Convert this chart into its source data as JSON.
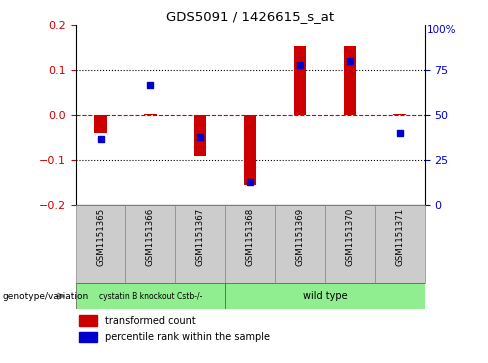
{
  "title": "GDS5091 / 1426615_s_at",
  "samples": [
    "GSM1151365",
    "GSM1151366",
    "GSM1151367",
    "GSM1151368",
    "GSM1151369",
    "GSM1151370",
    "GSM1151371"
  ],
  "red_bars": [
    -0.04,
    0.003,
    -0.09,
    -0.155,
    0.155,
    0.155,
    0.003
  ],
  "blue_dots_pct": [
    37,
    67,
    38,
    13,
    78,
    80,
    40
  ],
  "ylim_left": [
    -0.2,
    0.2
  ],
  "ylim_right": [
    0,
    100
  ],
  "yticks_left": [
    -0.2,
    -0.1,
    0.0,
    0.1,
    0.2
  ],
  "yticks_right": [
    0,
    25,
    50,
    75
  ],
  "legend_items": [
    "transformed count",
    "percentile rank within the sample"
  ],
  "bar_color": "#cc0000",
  "dot_color": "#0000cc",
  "tick_color_left": "#cc0000",
  "tick_color_right": "#0000cc",
  "sample_box_color": "#cccccc",
  "group1_label": "cystatin B knockout Cstb-/-",
  "group1_samples": 3,
  "group2_label": "wild type",
  "group2_samples": 4,
  "group_color": "#90EE90",
  "genotype_label": "genotype/variation"
}
